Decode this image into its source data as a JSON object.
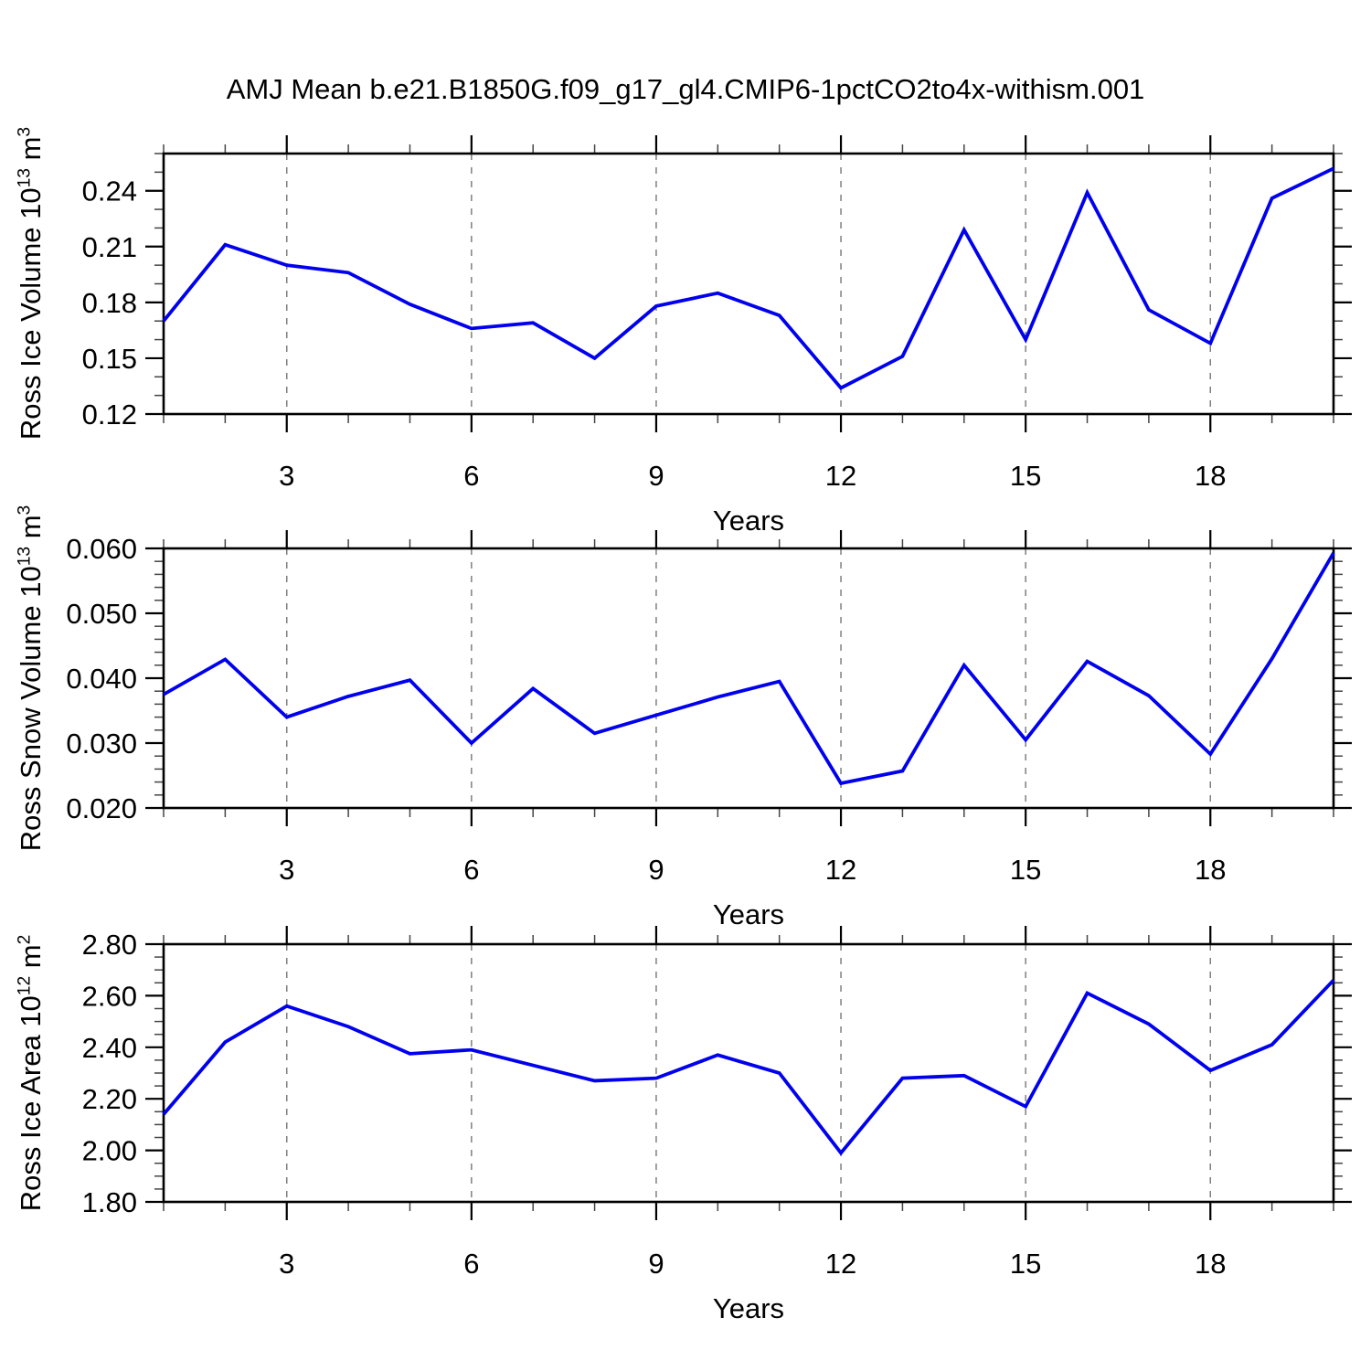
{
  "title": "AMJ Mean b.e21.B1850G.f09_g17_gl4.CMIP6-1pctCO2to4x-withism.001",
  "colors": {
    "line": "#0000EE",
    "axis": "#000000",
    "grid": "#7F7F7F",
    "minor_tick": "#444444",
    "text": "#000000",
    "background": "#FFFFFF"
  },
  "chart_data": [
    {
      "type": "line",
      "name": "ross-ice-volume",
      "ylabel_plain": "Ross Ice Volume 10^13 m^3",
      "ylabel": {
        "text": "Ross Ice Volume 10",
        "sup1": "13",
        "mid": " m",
        "sup2": "3"
      },
      "xlabel": "Years",
      "x": [
        1,
        2,
        3,
        4,
        5,
        6,
        7,
        8,
        9,
        10,
        11,
        12,
        13,
        14,
        15,
        16,
        17,
        18,
        19,
        20
      ],
      "values": [
        0.17,
        0.211,
        0.2,
        0.196,
        0.179,
        0.166,
        0.169,
        0.15,
        0.178,
        0.185,
        0.173,
        0.134,
        0.151,
        0.219,
        0.16,
        0.239,
        0.176,
        0.158,
        0.236,
        0.252
      ],
      "xlim": [
        1,
        20
      ],
      "ylim": [
        0.12,
        0.26
      ],
      "ytick_values": [
        0.12,
        0.15,
        0.18,
        0.21,
        0.24
      ],
      "ytick_labels": [
        "0.12",
        "0.15",
        "0.18",
        "0.21",
        "0.24"
      ],
      "y_minor_step": 0.01,
      "xtick_values": [
        3,
        6,
        9,
        12,
        15,
        18
      ],
      "xtick_labels": [
        "3",
        "6",
        "9",
        "12",
        "15",
        "18"
      ],
      "x_minor_step": 1,
      "grid": "dashed vertical at major x ticks"
    },
    {
      "type": "line",
      "name": "ross-snow-volume",
      "ylabel_plain": "Ross Snow Volume 10^13 m^3",
      "ylabel": {
        "text": "Ross Snow Volume 10",
        "sup1": "13",
        "mid": " m",
        "sup2": "3"
      },
      "xlabel": "Years",
      "x": [
        1,
        2,
        3,
        4,
        5,
        6,
        7,
        8,
        9,
        10,
        11,
        12,
        13,
        14,
        15,
        16,
        17,
        18,
        19,
        20
      ],
      "values": [
        0.0375,
        0.0429,
        0.034,
        0.0372,
        0.0397,
        0.03,
        0.0384,
        0.0315,
        0.0343,
        0.0371,
        0.0395,
        0.0238,
        0.0257,
        0.042,
        0.0305,
        0.0426,
        0.0373,
        0.0283,
        0.043,
        0.0593
      ],
      "xlim": [
        1,
        20
      ],
      "ylim": [
        0.02,
        0.06
      ],
      "ytick_values": [
        0.02,
        0.03,
        0.04,
        0.05,
        0.06
      ],
      "ytick_labels": [
        "0.020",
        "0.030",
        "0.040",
        "0.050",
        "0.060"
      ],
      "y_minor_step": 0.002,
      "xtick_values": [
        3,
        6,
        9,
        12,
        15,
        18
      ],
      "xtick_labels": [
        "3",
        "6",
        "9",
        "12",
        "15",
        "18"
      ],
      "x_minor_step": 1,
      "grid": "dashed vertical at major x ticks"
    },
    {
      "type": "line",
      "name": "ross-ice-area",
      "ylabel_plain": "Ross Ice Area 10^12 m^2",
      "ylabel": {
        "text": "Ross Ice Area 10",
        "sup1": "12",
        "mid": " m",
        "sup2": "2"
      },
      "xlabel": "Years",
      "x": [
        1,
        2,
        3,
        4,
        5,
        6,
        7,
        8,
        9,
        10,
        11,
        12,
        13,
        14,
        15,
        16,
        17,
        18,
        19,
        20
      ],
      "values": [
        2.14,
        2.42,
        2.56,
        2.48,
        2.375,
        2.39,
        2.33,
        2.27,
        2.28,
        2.37,
        2.3,
        1.99,
        2.28,
        2.29,
        2.17,
        2.61,
        2.49,
        2.31,
        2.41,
        2.66
      ],
      "xlim": [
        1,
        20
      ],
      "ylim": [
        1.8,
        2.8
      ],
      "ytick_values": [
        1.8,
        2.0,
        2.2,
        2.4,
        2.6,
        2.8
      ],
      "ytick_labels": [
        "1.80",
        "2.00",
        "2.20",
        "2.40",
        "2.60",
        "2.80"
      ],
      "y_minor_step": 0.05,
      "xtick_values": [
        3,
        6,
        9,
        12,
        15,
        18
      ],
      "xtick_labels": [
        "3",
        "6",
        "9",
        "12",
        "15",
        "18"
      ],
      "x_minor_step": 1,
      "grid": "dashed vertical at major x ticks"
    }
  ]
}
